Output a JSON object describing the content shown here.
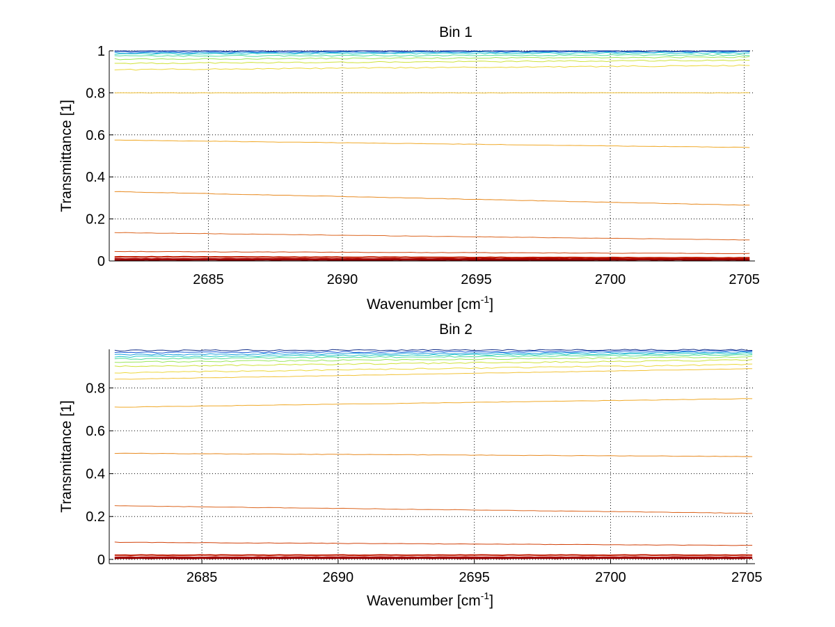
{
  "colors": {
    "trace_palette": [
      "#8b0000",
      "#a80000",
      "#c21a00",
      "#d2420a",
      "#dc6620",
      "#e88a20",
      "#f0a928",
      "#f2c33a",
      "#ecd83c",
      "#cfe23a",
      "#9ae65a",
      "#4fdc9a",
      "#22c8c8",
      "#1fa0e0",
      "#1a5ad8",
      "#15308a"
    ],
    "axes": "#000000",
    "grid": "#000000"
  },
  "chart_data": [
    {
      "type": "line",
      "title": "Bin 1",
      "xlabel": "Wavenumber [cm",
      "xlabel_sup": "-1",
      "xlabel_end": "]",
      "ylabel": "Transmittance [1]",
      "xlim": [
        2681.3,
        2705.4
      ],
      "ylim": [
        0,
        1
      ],
      "xticks": [
        2685,
        2690,
        2695,
        2700,
        2705
      ],
      "xtick_labels": [
        "2685",
        "2690",
        "2695",
        "2700",
        "2705"
      ],
      "yticks": [
        0,
        0.2,
        0.4,
        0.6,
        0.8,
        1
      ],
      "ytick_labels": [
        "0",
        "0.2",
        "0.4",
        "0.6",
        "0.8",
        "1"
      ],
      "grid": true,
      "series": [
        {
          "x": [
            2681.5,
            2705.2
          ],
          "values": [
            0.005,
            0.005
          ]
        },
        {
          "x": [
            2681.5,
            2705.2
          ],
          "values": [
            0.01,
            0.01
          ]
        },
        {
          "x": [
            2681.5,
            2705.2
          ],
          "values": [
            0.02,
            0.015
          ]
        },
        {
          "x": [
            2681.5,
            2705.2
          ],
          "values": [
            0.045,
            0.035
          ]
        },
        {
          "x": [
            2681.5,
            2705.2
          ],
          "values": [
            0.135,
            0.1
          ]
        },
        {
          "x": [
            2681.5,
            2705.2
          ],
          "values": [
            0.33,
            0.265
          ]
        },
        {
          "x": [
            2681.5,
            2705.2
          ],
          "values": [
            0.575,
            0.54
          ]
        },
        {
          "x": [
            2681.5,
            2705.2
          ],
          "values": [
            0.8,
            0.8
          ]
        },
        {
          "x": [
            2681.5,
            2705.2
          ],
          "values": [
            0.91,
            0.93
          ]
        },
        {
          "x": [
            2681.5,
            2705.2
          ],
          "values": [
            0.94,
            0.955
          ]
        },
        {
          "x": [
            2681.5,
            2705.2
          ],
          "values": [
            0.96,
            0.97
          ]
        },
        {
          "x": [
            2681.5,
            2705.2
          ],
          "values": [
            0.975,
            0.98
          ]
        },
        {
          "x": [
            2681.5,
            2705.2
          ],
          "values": [
            0.985,
            0.99
          ]
        },
        {
          "x": [
            2681.5,
            2705.2
          ],
          "values": [
            0.99,
            0.995
          ]
        },
        {
          "x": [
            2681.5,
            2705.2
          ],
          "values": [
            0.995,
            0.998
          ]
        },
        {
          "x": [
            2681.5,
            2705.2
          ],
          "values": [
            1.0,
            1.0
          ]
        }
      ]
    },
    {
      "type": "line",
      "title": "Bin 2",
      "xlabel": "Wavenumber [cm",
      "xlabel_sup": "-1",
      "xlabel_end": "]",
      "ylabel": "Transmittance [1]",
      "xlim": [
        2681.6,
        2705.3
      ],
      "ylim": [
        -0.02,
        0.98
      ],
      "xticks": [
        2685,
        2690,
        2695,
        2700,
        2705
      ],
      "xtick_labels": [
        "2685",
        "2690",
        "2695",
        "2700",
        "2705"
      ],
      "yticks": [
        0,
        0.2,
        0.4,
        0.6,
        0.8
      ],
      "ytick_labels": [
        "0",
        "0.2",
        "0.4",
        "0.6",
        "0.8"
      ],
      "grid": true,
      "series": [
        {
          "x": [
            2681.8,
            2705.2
          ],
          "values": [
            0.005,
            0.005
          ]
        },
        {
          "x": [
            2681.8,
            2705.2
          ],
          "values": [
            0.01,
            0.01
          ]
        },
        {
          "x": [
            2681.8,
            2705.2
          ],
          "values": [
            0.02,
            0.02
          ]
        },
        {
          "x": [
            2681.8,
            2705.2
          ],
          "values": [
            0.08,
            0.065
          ]
        },
        {
          "x": [
            2681.8,
            2705.2
          ],
          "values": [
            0.25,
            0.215
          ]
        },
        {
          "x": [
            2681.8,
            2705.2
          ],
          "values": [
            0.495,
            0.48
          ]
        },
        {
          "x": [
            2681.8,
            2705.2
          ],
          "values": [
            0.71,
            0.75
          ]
        },
        {
          "x": [
            2681.8,
            2705.2
          ],
          "values": [
            0.84,
            0.89
          ]
        },
        {
          "x": [
            2681.8,
            2705.2
          ],
          "values": [
            0.87,
            0.91
          ]
        },
        {
          "x": [
            2681.8,
            2705.2
          ],
          "values": [
            0.9,
            0.93
          ]
        },
        {
          "x": [
            2681.8,
            2705.2
          ],
          "values": [
            0.92,
            0.945
          ]
        },
        {
          "x": [
            2681.8,
            2705.2
          ],
          "values": [
            0.935,
            0.955
          ]
        },
        {
          "x": [
            2681.8,
            2705.2
          ],
          "values": [
            0.945,
            0.962
          ]
        },
        {
          "x": [
            2681.8,
            2705.2
          ],
          "values": [
            0.955,
            0.967
          ]
        },
        {
          "x": [
            2681.8,
            2705.2
          ],
          "values": [
            0.965,
            0.972
          ]
        },
        {
          "x": [
            2681.8,
            2705.2
          ],
          "values": [
            0.975,
            0.978
          ]
        }
      ]
    }
  ]
}
